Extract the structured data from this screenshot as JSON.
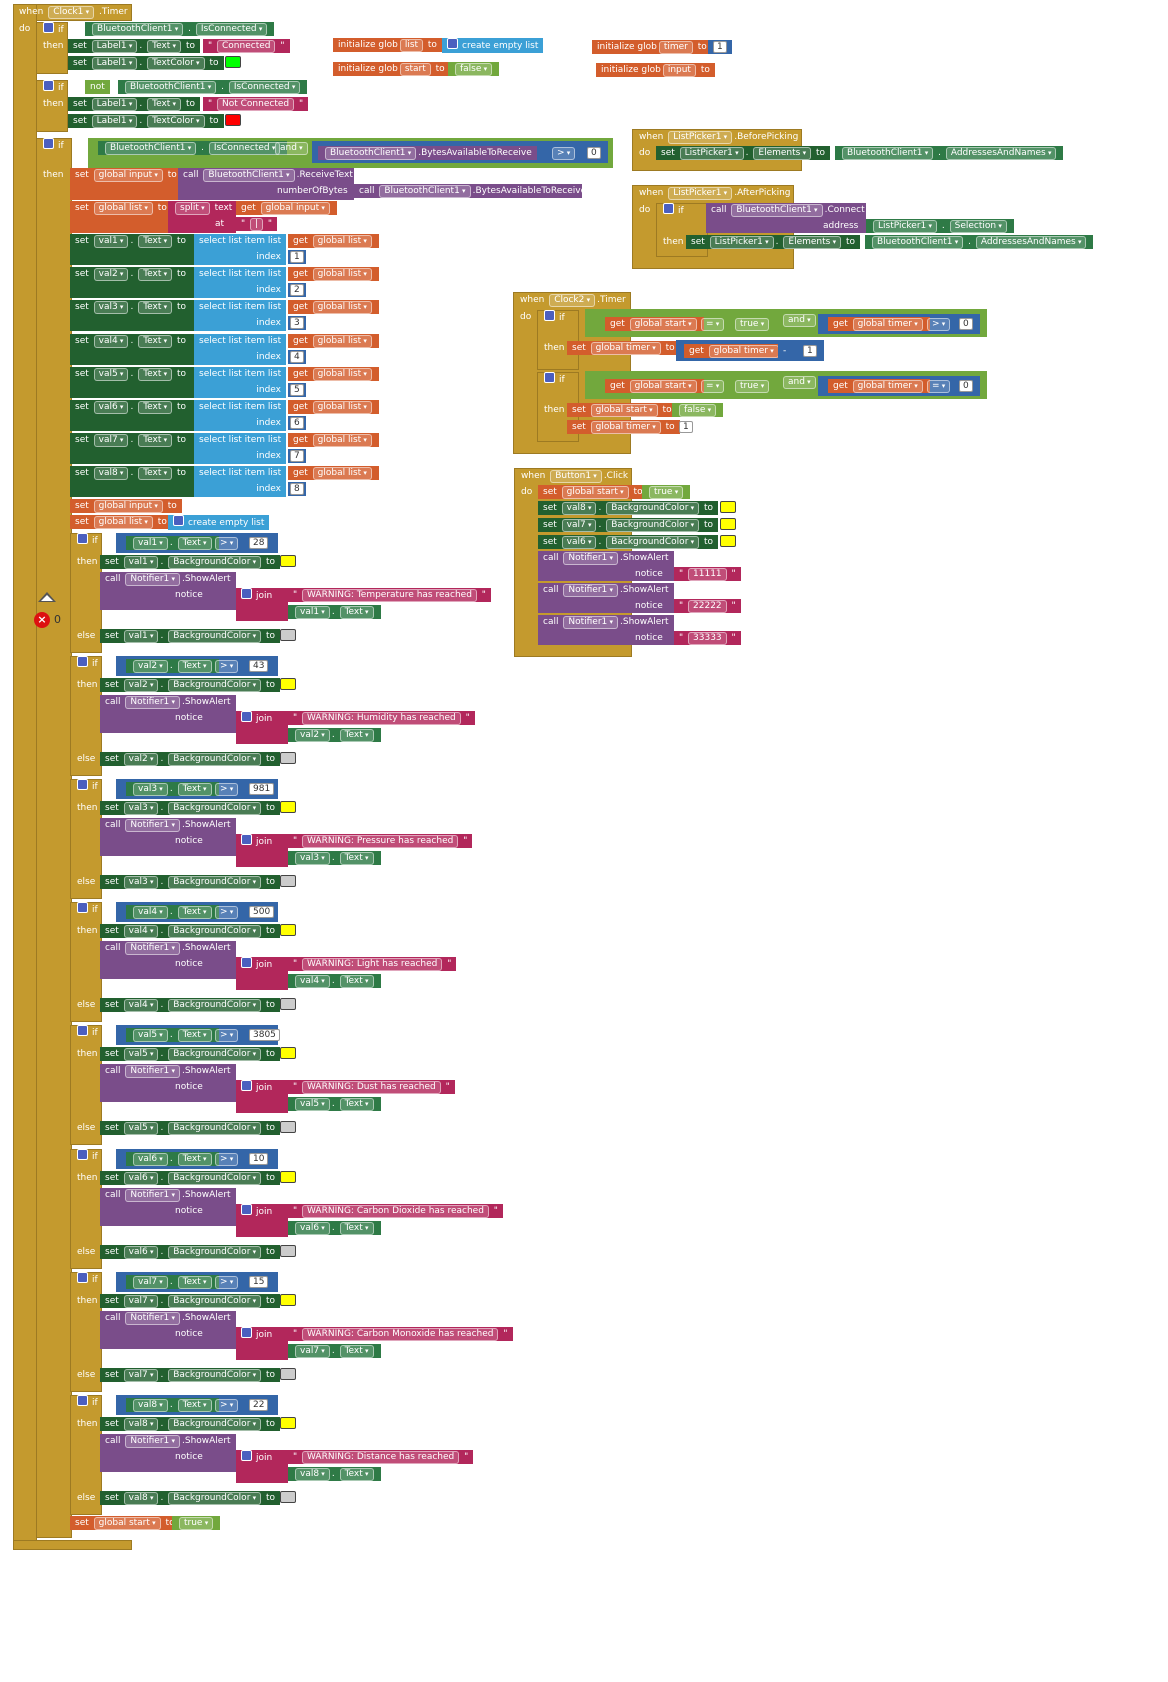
{
  "main_event": {
    "when": "when",
    "component": "Clock1",
    "event": ".Timer",
    "do": "do",
    "connection": {
      "if1": {
        "comp": "BluetoothClient1",
        "prop": "IsConnected",
        "then": "then",
        "set1": {
          "comp": "Label1",
          "prop": "Text",
          "to": "to",
          "value": "Connected"
        },
        "set2": {
          "comp": "Label1",
          "prop": "TextColor",
          "to": "to",
          "color": "#00ff00"
        }
      },
      "if2": {
        "not": "not",
        "comp": "BluetoothClient1",
        "prop": "IsConnected",
        "then": "then",
        "set1": {
          "comp": "Label1",
          "prop": "Text",
          "to": "to",
          "value": "Not Connected"
        },
        "set2": {
          "comp": "Label1",
          "prop": "TextColor",
          "to": "to",
          "color": "#ff0000"
        }
      }
    },
    "bytes_if": {
      "cond_comp": "BluetoothClient1",
      "cond_prop": "IsConnected",
      "and": "and",
      "call_comp": "BluetoothClient1",
      "call_method": ".BytesAvailableToReceive",
      "op": ">",
      "num": "0",
      "then": "then",
      "set_input": {
        "set": "set",
        "var": "global input",
        "to": "to",
        "call": "call",
        "comp": "BluetoothClient1",
        "method": ".ReceiveText",
        "param": "numberOfBytes",
        "param_call_comp": "BluetoothClient1",
        "param_call_method": ".BytesAvailableToReceive"
      },
      "set_list": {
        "set": "set",
        "var": "global list",
        "to": "to",
        "split": "split",
        "text": "text",
        "get": "get",
        "get_var": "global input",
        "at": "at",
        "at_value": "|"
      },
      "vals": [
        {
          "comp": "val1",
          "prop": "Text",
          "index": "1"
        },
        {
          "comp": "val2",
          "prop": "Text",
          "index": "2"
        },
        {
          "comp": "val3",
          "prop": "Text",
          "index": "3"
        },
        {
          "comp": "val4",
          "prop": "Text",
          "index": "4"
        },
        {
          "comp": "val5",
          "prop": "Text",
          "index": "5"
        },
        {
          "comp": "val6",
          "prop": "Text",
          "index": "6"
        },
        {
          "comp": "val7",
          "prop": "Text",
          "index": "7"
        },
        {
          "comp": "val8",
          "prop": "Text",
          "index": "8"
        }
      ],
      "select_label": "select list item  list",
      "index_label": "index",
      "get": "get",
      "list_var": "global list",
      "reset_input": {
        "set": "set",
        "var": "global input",
        "to": "to"
      },
      "reset_list": {
        "set": "set",
        "var": "global list",
        "to": "to",
        "create": "create empty list"
      }
    },
    "alerts": [
      {
        "comp": "val1",
        "threshold": "28",
        "msg": "WARNING: Temperature has reached"
      },
      {
        "comp": "val2",
        "threshold": "43",
        "msg": "WARNING: Humidity has reached"
      },
      {
        "comp": "val3",
        "threshold": "981",
        "msg": "WARNING: Pressure has reached"
      },
      {
        "comp": "val4",
        "threshold": "500",
        "msg": "WARNING: Light has reached"
      },
      {
        "comp": "val5",
        "threshold": "3805",
        "msg": "WARNING: Dust has reached"
      },
      {
        "comp": "val6",
        "threshold": "10",
        "msg": "WARNING: Carbon Dioxide has reached"
      },
      {
        "comp": "val7",
        "threshold": "15",
        "msg": "WARNING: Carbon Monoxide has reached"
      },
      {
        "comp": "val8",
        "threshold": "22",
        "msg": "WARNING: Distance has reached"
      }
    ],
    "alert_labels": {
      "if": "if",
      "then": "then",
      "else": "else",
      "set": "set",
      "prop_text": "Text",
      "op": ">",
      "bg": "BackgroundColor",
      "to": "to",
      "call": "call",
      "notifier": "Notifier1",
      "method": ".ShowAlert",
      "notice": "notice",
      "join": "join",
      "warn_color": "#ffff00",
      "ok_color": "#cccccc"
    },
    "final_set": {
      "set": "set",
      "var": "global start",
      "to": "to",
      "value": "true"
    }
  },
  "globals": [
    {
      "label": "initialize glob",
      "name": "list",
      "to": "to",
      "value": "create empty list"
    },
    {
      "label": "initialize glob",
      "name": "start",
      "to": "to",
      "value": "false"
    },
    {
      "label": "initialize glob",
      "name": "timer",
      "to": "to",
      "value": "1"
    },
    {
      "label": "initialize glob",
      "name": "input",
      "to": "to",
      "value": ""
    }
  ],
  "listpicker_before": {
    "when": "when",
    "comp": "ListPicker1",
    "event": ".BeforePicking",
    "do": "do",
    "set": "set",
    "set_comp": "ListPicker1",
    "set_prop": "Elements",
    "to": "to",
    "val_comp": "BluetoothClient1",
    "val_prop": "AddressesAndNames"
  },
  "listpicker_after": {
    "when": "when",
    "comp": "ListPicker1",
    "event": ".AfterPicking",
    "do": "do",
    "if": "if",
    "call": "call",
    "call_comp": "BluetoothClient1",
    "call_method": ".Connect",
    "address": "address",
    "addr_comp": "ListPicker1",
    "addr_prop": "Selection",
    "then": "then",
    "set": "set",
    "set_comp": "ListPicker1",
    "set_prop": "Elements",
    "to": "to",
    "val_comp": "BluetoothClient1",
    "val_prop": "AddressesAndNames"
  },
  "clock2": {
    "when": "when",
    "comp": "Clock2",
    "event": ".Timer",
    "do": "do",
    "if1": {
      "if": "if",
      "get": "get",
      "var1": "global start",
      "op1": "=",
      "v1": "true",
      "and": "and",
      "var2": "global timer",
      "op2": ">",
      "v2": "0",
      "then": "then",
      "set": "set",
      "set_var": "global timer",
      "to": "to",
      "minus": "-",
      "minus_num": "1"
    },
    "if2": {
      "if": "if",
      "get": "get",
      "var1": "global start",
      "op1": "=",
      "v1": "true",
      "and": "and",
      "var2": "global timer",
      "op2": "=",
      "v2": "0",
      "then": "then",
      "set": "set",
      "set_start": "global start",
      "to": "to",
      "start_val": "false",
      "set_timer": "global timer",
      "timer_val": "1"
    }
  },
  "button1": {
    "when": "when",
    "comp": "Button1",
    "event": ".Click",
    "do": "do",
    "set_start": {
      "set": "set",
      "var": "global start",
      "to": "to",
      "value": "true"
    },
    "sets": [
      {
        "comp": "val8",
        "prop": "BackgroundColor"
      },
      {
        "comp": "val7",
        "prop": "BackgroundColor"
      },
      {
        "comp": "val6",
        "prop": "BackgroundColor"
      }
    ],
    "alerts": [
      {
        "value": "11111"
      },
      {
        "value": "22222"
      },
      {
        "value": "33333"
      }
    ],
    "call": "call",
    "notifier": "Notifier1",
    "method": ".ShowAlert",
    "notice": "notice",
    "to": "to",
    "set": "set",
    "color": "#ffff00"
  },
  "workspace": {
    "warning_count": "0",
    "warning_icon": "error-icon"
  }
}
